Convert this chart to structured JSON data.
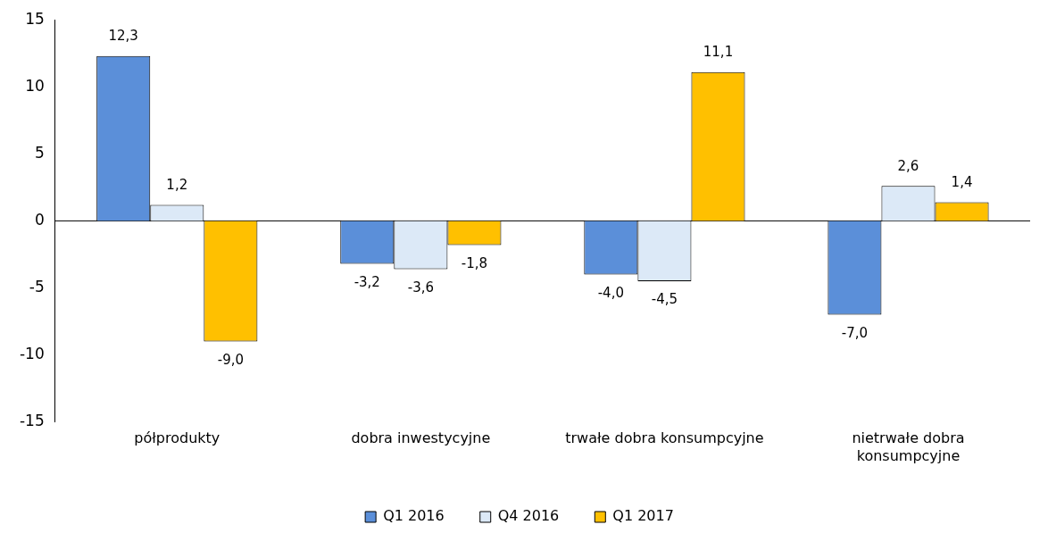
{
  "chart_data": {
    "type": "bar",
    "categories": [
      "półprodukty",
      "dobra inwestycyjne",
      "trwałe dobra konsumpcyjne",
      "nietrwałe dobra konsumpcyjne"
    ],
    "series": [
      {
        "name": "Q1 2016",
        "color": "#5b8fd9",
        "values": [
          12.3,
          -3.2,
          -4.0,
          -7.0
        ],
        "value_labels": [
          "12,3",
          "-3,2",
          "-4,0",
          "-7,0"
        ]
      },
      {
        "name": "Q4 2016",
        "color": "#dce9f7",
        "values": [
          1.2,
          -3.6,
          -4.5,
          2.6
        ],
        "value_labels": [
          "1,2",
          "-3,6",
          "-4,5",
          "2,6"
        ]
      },
      {
        "name": "Q1 2017",
        "color": "#ffc000",
        "values": [
          -9.0,
          -1.8,
          11.1,
          1.4
        ],
        "value_labels": [
          "-9,0",
          "-1,8",
          "11,1",
          "1,4"
        ]
      }
    ],
    "ref_lines": [
      {
        "axis": "y",
        "value": 0,
        "color": "#000000"
      }
    ],
    "ylim": [
      -15,
      15
    ],
    "yticks": [
      -15,
      -10,
      -5,
      0,
      5,
      10,
      15
    ],
    "grid": false,
    "legend": "bottom"
  }
}
